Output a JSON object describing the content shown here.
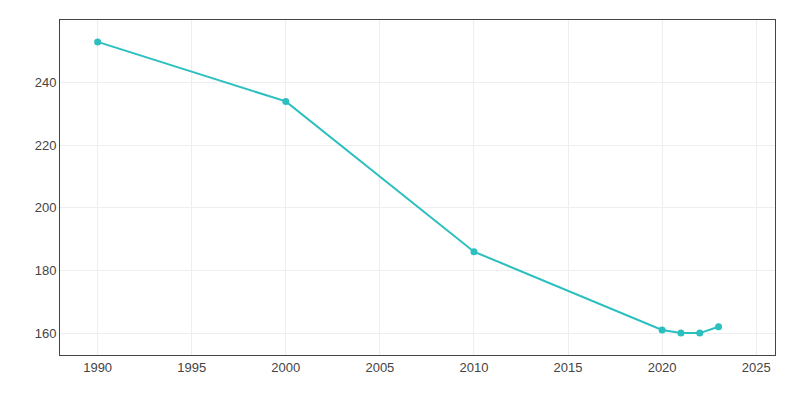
{
  "chart_data": {
    "type": "line",
    "x": [
      1990,
      2000,
      2010,
      2020,
      2021,
      2022,
      2023
    ],
    "values": [
      253,
      234,
      186,
      161,
      160,
      160,
      162
    ],
    "color": "#2bbfbf",
    "marker": "circle",
    "xlim": [
      1988,
      2026
    ],
    "ylim": [
      153,
      260
    ],
    "xticks": [
      1990,
      1995,
      2000,
      2005,
      2010,
      2015,
      2020,
      2025
    ],
    "yticks": [
      160,
      180,
      200,
      220,
      240
    ],
    "grid": true
  }
}
